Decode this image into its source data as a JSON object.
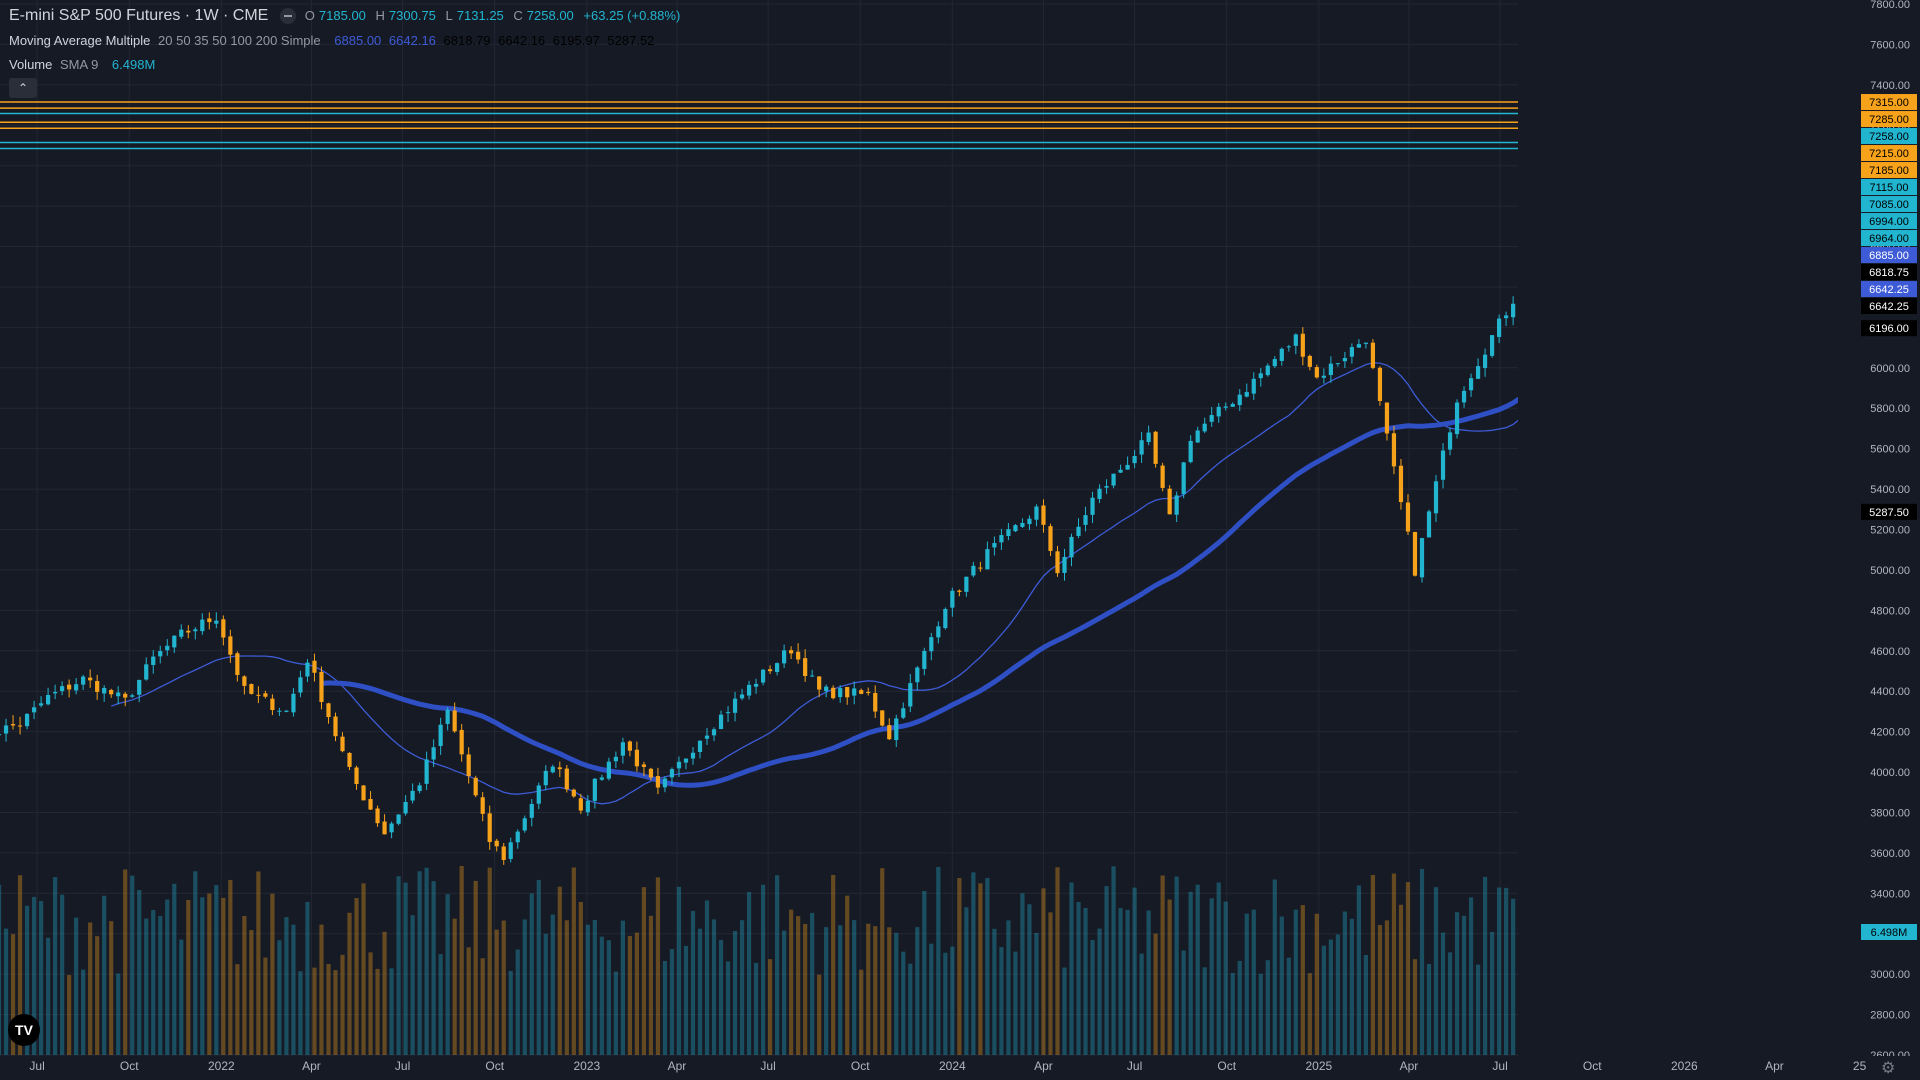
{
  "header": {
    "symbol_line": "E-mini S&P 500 Futures · 1W · CME",
    "o_label": "O",
    "o_value": "7185.00",
    "h_label": "H",
    "h_value": "7300.75",
    "l_label": "L",
    "l_value": "7131.25",
    "c_label": "C",
    "c_value": "7258.00",
    "change": "+63.25 (+0.88%)"
  },
  "indicators": {
    "ma_name": "Moving Average Multiple",
    "ma_params": "20 50 35 50 100 200 Simple",
    "ma_values": [
      "6885.00",
      "6642.16",
      "6818.79",
      "6642.16",
      "6195.97",
      "5287.52"
    ],
    "vol_name": "Volume",
    "vol_params": "SMA 9",
    "vol_value": "6.498M"
  },
  "collapse_glyph": "⌃",
  "logo_text": "TV",
  "settings_glyph": "⚙",
  "colors": {
    "background": "#161a25",
    "up": "#22b5d0",
    "down": "#f7a21b",
    "ma_fast": "#3d5bd6",
    "ma_slow": "#2f4fc4",
    "grid": "#232734",
    "text": "#d1d4dc",
    "axis_text": "#b2b5be"
  },
  "chart_data": {
    "type": "candlestick",
    "title": "E-mini S&P 500 Futures · 1W · CME",
    "interval": "1W",
    "y_axis_ticks": [
      7800,
      7600,
      7400,
      7200,
      7000,
      6800,
      6600,
      6400,
      6200,
      6000,
      5800,
      5600,
      5400,
      5200,
      5000,
      4800,
      4600,
      4400,
      4200,
      4000,
      3800,
      3600,
      3400,
      3200,
      3000,
      2800,
      2600
    ],
    "x_axis_labels": [
      "Jul",
      "Oct",
      "2022",
      "Apr",
      "Jul",
      "Oct",
      "2023",
      "Apr",
      "Jul",
      "Oct",
      "2024",
      "Apr",
      "Jul",
      "Oct",
      "2025",
      "Apr",
      "Jul",
      "Oct",
      "2026",
      "Apr",
      "25"
    ],
    "x_axis_label_dates": [
      "2021-07-01",
      "2021-10-01",
      "2022-01-01",
      "2022-04-01",
      "2022-07-01",
      "2022-10-01",
      "2023-01-01",
      "2023-04-01",
      "2023-07-01",
      "2023-10-01",
      "2024-01-01",
      "2024-04-01",
      "2024-07-01",
      "2024-10-01",
      "2025-01-01",
      "2025-04-01",
      "2025-07-01",
      "2025-10-01",
      "2026-01-01",
      "2026-04-01",
      "2026-06-25"
    ],
    "x_range": [
      "2021-05-03",
      "2026-06-25"
    ],
    "last_bar_date": "2026-04-20",
    "price_anchors": [
      [
        "2021-05-03",
        4170
      ],
      [
        "2021-06-14",
        4240
      ],
      [
        "2021-07-12",
        4370
      ],
      [
        "2021-08-16",
        4460
      ],
      [
        "2021-09-27",
        4350
      ],
      [
        "2021-10-25",
        4560
      ],
      [
        "2021-11-22",
        4680
      ],
      [
        "2021-12-27",
        4770
      ],
      [
        "2022-01-24",
        4400
      ],
      [
        "2022-03-07",
        4300
      ],
      [
        "2022-03-28",
        4560
      ],
      [
        "2022-05-09",
        4000
      ],
      [
        "2022-06-13",
        3700
      ],
      [
        "2022-07-18",
        3950
      ],
      [
        "2022-08-15",
        4300
      ],
      [
        "2022-09-26",
        3660
      ],
      [
        "2022-10-10",
        3580
      ],
      [
        "2022-11-28",
        4050
      ],
      [
        "2022-12-26",
        3830
      ],
      [
        "2023-02-06",
        4150
      ],
      [
        "2023-03-13",
        3900
      ],
      [
        "2023-04-24",
        4170
      ],
      [
        "2023-06-12",
        4420
      ],
      [
        "2023-07-24",
        4610
      ],
      [
        "2023-08-21",
        4400
      ],
      [
        "2023-10-09",
        4380
      ],
      [
        "2023-10-30",
        4180
      ],
      [
        "2023-12-25",
        4830
      ],
      [
        "2024-02-05",
        5080
      ],
      [
        "2024-03-25",
        5300
      ],
      [
        "2024-04-15",
        5000
      ],
      [
        "2024-05-20",
        5350
      ],
      [
        "2024-07-15",
        5650
      ],
      [
        "2024-08-05",
        5250
      ],
      [
        "2024-08-26",
        5660
      ],
      [
        "2024-10-21",
        5900
      ],
      [
        "2024-12-09",
        6150
      ],
      [
        "2024-12-30",
        5950
      ],
      [
        "2025-02-17",
        6150
      ],
      [
        "2025-03-10",
        5650
      ],
      [
        "2025-04-07",
        5000
      ],
      [
        "2025-05-19",
        5850
      ],
      [
        "2025-07-21",
        6400
      ],
      [
        "2025-09-22",
        6700
      ],
      [
        "2025-10-27",
        6880
      ],
      [
        "2025-12-08",
        6900
      ],
      [
        "2026-01-12",
        6990
      ],
      [
        "2026-02-16",
        6950
      ],
      [
        "2026-03-16",
        6700
      ],
      [
        "2026-03-30",
        6580
      ],
      [
        "2026-04-13",
        7195
      ],
      [
        "2026-04-20",
        7258
      ]
    ],
    "last_bar": {
      "open": 7185.0,
      "high": 7300.75,
      "low": 7131.25,
      "close": 7258.0
    },
    "volume_avg": 6.498,
    "volume_unit": "M",
    "horizontal_levels": [
      {
        "value": 7315.0,
        "color": "#f7a21b"
      },
      {
        "value": 7285.0,
        "color": "#f7a21b"
      },
      {
        "value": 7258.0,
        "color": "#22b5d0"
      },
      {
        "value": 7215.0,
        "color": "#f7a21b"
      },
      {
        "value": 7185.0,
        "color": "#f7a21b"
      },
      {
        "value": 7115.0,
        "color": "#22b5d0"
      },
      {
        "value": 7085.0,
        "color": "#22b5d0"
      }
    ],
    "price_tags": [
      {
        "value": "7315.00",
        "bg": "#f7a21b",
        "fg": "#000000"
      },
      {
        "value": "7285.00",
        "bg": "#f7a21b",
        "fg": "#000000"
      },
      {
        "value": "7258.00",
        "bg": "#22b5d0",
        "fg": "#000000"
      },
      {
        "value": "7215.00",
        "bg": "#f7a21b",
        "fg": "#000000"
      },
      {
        "value": "7185.00",
        "bg": "#f7a21b",
        "fg": "#000000"
      },
      {
        "value": "7115.00",
        "bg": "#22b5d0",
        "fg": "#000000"
      },
      {
        "value": "7085.00",
        "bg": "#22b5d0",
        "fg": "#000000"
      },
      {
        "value": "6994.00",
        "bg": "#22b5d0",
        "fg": "#000000"
      },
      {
        "value": "6964.00",
        "bg": "#22b5d0",
        "fg": "#000000"
      },
      {
        "value": "6885.00",
        "bg": "#3d5bd6",
        "fg": "#ffffff"
      },
      {
        "value": "6818.75",
        "bg": "#000000",
        "fg": "#ffffff"
      },
      {
        "value": "6642.25",
        "bg": "#3d5bd6",
        "fg": "#ffffff"
      },
      {
        "value": "6642.25",
        "bg": "#000000",
        "fg": "#ffffff"
      },
      {
        "value": "6196.00",
        "bg": "#000000",
        "fg": "#ffffff"
      },
      {
        "value": "5287.50",
        "bg": "#000000",
        "fg": "#ffffff"
      }
    ],
    "volume_tag": {
      "value": "6.498M",
      "bg": "#22b5d0",
      "fg": "#000000"
    },
    "grid": true,
    "legend_position": "top-left"
  }
}
